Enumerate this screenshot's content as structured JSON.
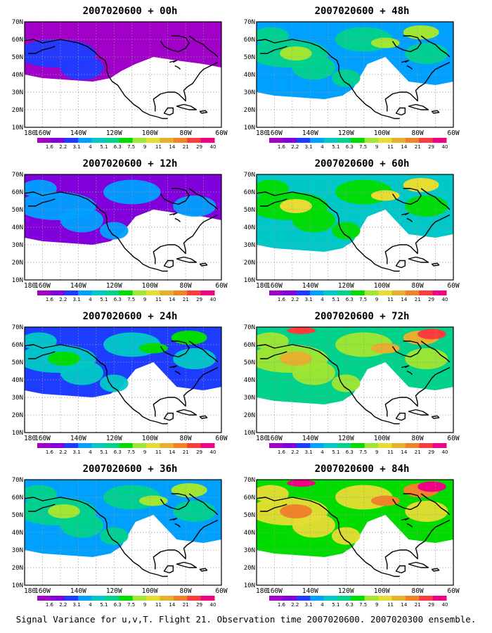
{
  "colorbar": {
    "labels": [
      "1.6",
      "2.2",
      "3.1",
      "4",
      "5.1",
      "6.3",
      "7.5",
      "9",
      "11",
      "14",
      "21",
      "29",
      "40"
    ],
    "colors": [
      "#a000c8",
      "#8200dc",
      "#1e3cff",
      "#00a0ff",
      "#00c8c8",
      "#00d28c",
      "#00dc00",
      "#a0e632",
      "#e6dc32",
      "#e6af2d",
      "#f08228",
      "#fa3c3c",
      "#f00082"
    ]
  },
  "axes": {
    "x_ticks": [
      "180",
      "160W",
      "140W",
      "120W",
      "100W",
      "80W",
      "60W"
    ],
    "y_ticks": [
      "10N",
      "20N",
      "30N",
      "40N",
      "50N",
      "60N",
      "70N"
    ]
  },
  "panels": [
    {
      "title": "2007020600 + 00h",
      "level": 0
    },
    {
      "title": "2007020600 + 48h",
      "level": 3
    },
    {
      "title": "2007020600 + 12h",
      "level": 1
    },
    {
      "title": "2007020600 + 60h",
      "level": 4
    },
    {
      "title": "2007020600 + 24h",
      "level": 2
    },
    {
      "title": "2007020600 + 72h",
      "level": 5
    },
    {
      "title": "2007020600 + 36h",
      "level": 3
    },
    {
      "title": "2007020600 + 84h",
      "level": 6
    }
  ],
  "caption": "Signal Variance for u,v,T. Flight 21. Observation time 2007020600. 2007020300 ensemble."
}
